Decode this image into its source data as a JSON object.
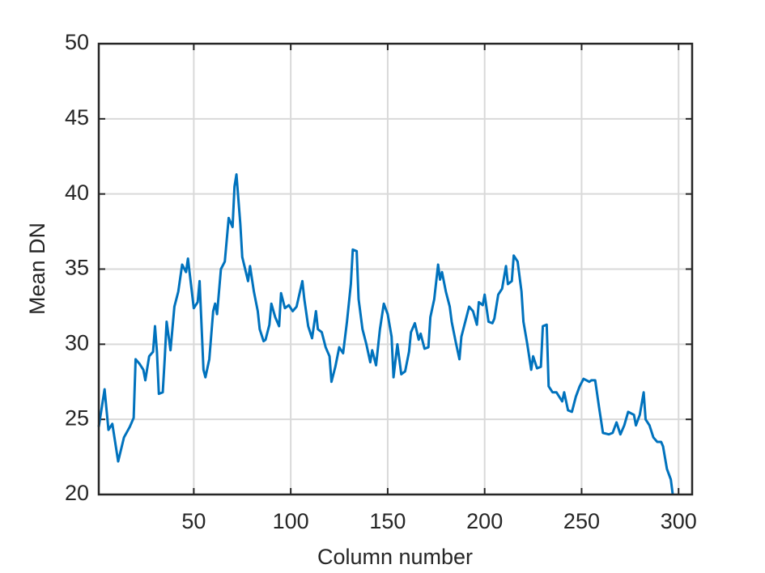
{
  "chart_data": {
    "type": "line",
    "xlabel": "Column number",
    "ylabel": "Mean DN",
    "x": [
      1,
      4,
      6,
      8,
      11,
      14,
      17,
      19,
      20,
      22,
      24,
      25,
      27,
      29,
      30,
      31,
      32,
      34,
      35,
      36,
      38,
      40,
      42,
      44,
      46,
      47,
      50,
      52,
      53,
      55,
      56,
      58,
      60,
      61,
      62,
      64,
      66,
      68,
      70,
      71,
      72,
      74,
      75,
      78,
      79,
      81,
      83,
      84,
      86,
      87,
      89,
      90,
      92,
      94,
      95,
      97,
      99,
      101,
      103,
      106,
      107,
      109,
      111,
      113,
      114,
      116,
      118,
      120,
      121,
      123,
      125,
      127,
      129,
      131,
      132,
      134,
      135,
      137,
      139,
      141,
      142,
      144,
      146,
      148,
      150,
      152,
      153,
      155,
      157,
      159,
      161,
      162,
      164,
      166,
      167,
      169,
      171,
      172,
      174,
      176,
      177,
      178,
      180,
      182,
      183,
      185,
      187,
      188,
      190,
      192,
      194,
      196,
      197,
      199,
      200,
      202,
      204,
      205,
      207,
      209,
      211,
      212,
      214,
      215,
      217,
      219,
      220,
      222,
      224,
      225,
      227,
      229,
      230,
      232,
      233,
      235,
      237,
      240,
      241,
      243,
      245,
      247,
      249,
      251,
      254,
      255,
      257,
      259,
      261,
      264,
      266,
      268,
      270,
      272,
      274,
      277,
      278,
      280,
      282,
      283,
      285,
      287,
      289,
      291,
      292,
      294,
      296,
      297
    ],
    "series": [
      {
        "name": "Mean DN",
        "color": "#0072BD",
        "values": [
          24.5,
          27.0,
          24.3,
          24.7,
          22.2,
          23.8,
          24.5,
          25.1,
          29.0,
          28.7,
          28.3,
          27.6,
          29.2,
          29.5,
          31.2,
          29.5,
          26.7,
          26.8,
          29.0,
          31.5,
          29.6,
          32.5,
          33.5,
          35.3,
          34.8,
          35.7,
          32.4,
          32.8,
          34.2,
          28.3,
          27.8,
          29.0,
          32.2,
          32.7,
          32.0,
          35.0,
          35.5,
          38.4,
          37.8,
          40.5,
          41.3,
          38.0,
          35.8,
          34.2,
          35.2,
          33.5,
          32.2,
          31.0,
          30.2,
          30.3,
          31.3,
          32.7,
          31.8,
          31.2,
          33.4,
          32.4,
          32.6,
          32.2,
          32.5,
          34.2,
          33.0,
          31.2,
          30.4,
          32.2,
          31.0,
          30.8,
          29.8,
          29.2,
          27.5,
          28.5,
          29.8,
          29.4,
          31.5,
          34.0,
          36.3,
          36.2,
          33.0,
          31.0,
          30.0,
          28.8,
          29.6,
          28.6,
          31.0,
          32.7,
          32.0,
          30.5,
          27.8,
          30.0,
          28.0,
          28.2,
          29.5,
          30.8,
          31.4,
          30.3,
          30.7,
          29.7,
          29.8,
          31.8,
          33.0,
          35.3,
          34.3,
          34.8,
          33.5,
          32.5,
          31.5,
          30.2,
          29.0,
          30.5,
          31.5,
          32.5,
          32.2,
          31.3,
          32.8,
          32.6,
          33.3,
          31.5,
          31.4,
          31.7,
          33.3,
          33.7,
          35.2,
          34.0,
          34.2,
          35.9,
          35.5,
          33.5,
          31.5,
          30.0,
          28.3,
          29.2,
          28.4,
          28.5,
          31.2,
          31.3,
          27.2,
          26.8,
          26.8,
          26.2,
          26.8,
          25.6,
          25.5,
          26.5,
          27.2,
          27.7,
          27.5,
          27.6,
          27.6,
          25.8,
          24.1,
          24.0,
          24.1,
          24.8,
          24.0,
          24.6,
          25.5,
          25.3,
          24.6,
          25.3,
          26.8,
          25.0,
          24.6,
          23.8,
          23.5,
          23.5,
          23.2,
          21.7,
          21.0,
          20.0
        ]
      }
    ],
    "xlim": [
      1,
      307
    ],
    "ylim": [
      20,
      50
    ],
    "xticks": [
      50,
      100,
      150,
      200,
      250,
      300
    ],
    "yticks": [
      20,
      25,
      30,
      35,
      40,
      45,
      50
    ],
    "grid": true
  }
}
